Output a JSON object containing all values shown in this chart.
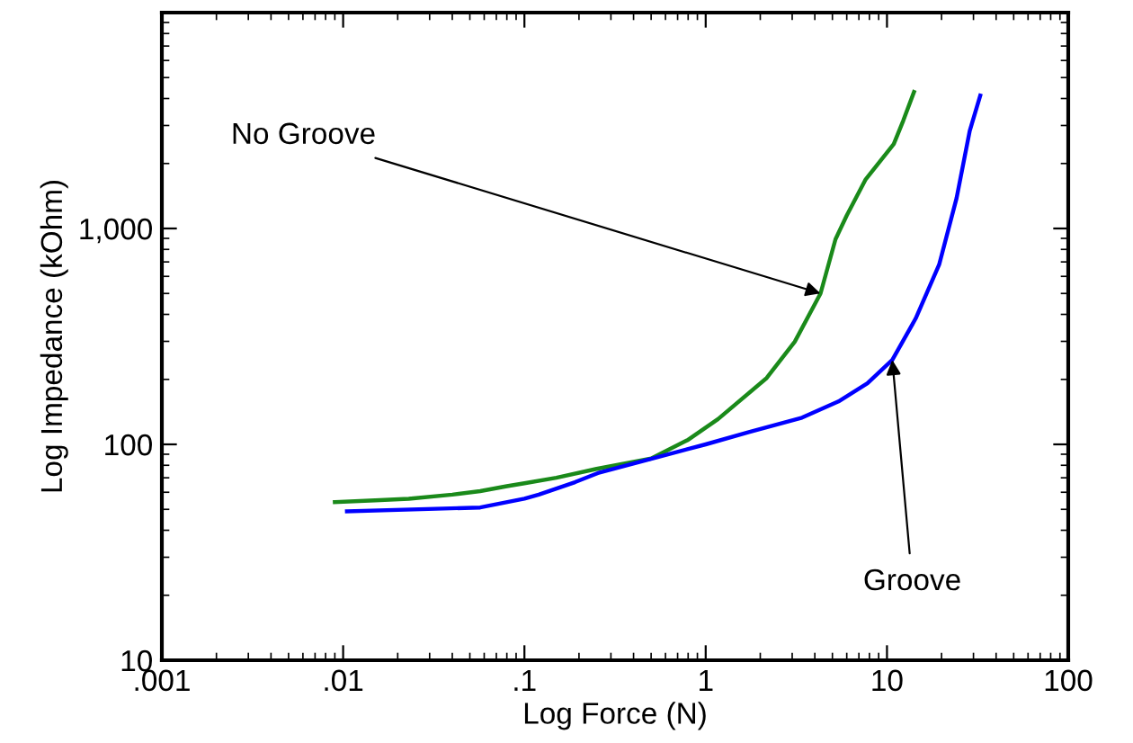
{
  "chart_data": {
    "type": "line",
    "xlabel": "Log Force (N)",
    "ylabel": "Log Impedance (kOhm)",
    "log": "xy",
    "grid": false,
    "legend": false,
    "marker": "none",
    "line_style": "solid",
    "xlim": [
      0.001,
      100
    ],
    "ylim": [
      10,
      10000
    ],
    "xticks": [
      {
        "value": 0.001,
        "label": ".001"
      },
      {
        "value": 0.01,
        "label": ".01"
      },
      {
        "value": 0.1,
        "label": ".1"
      },
      1,
      10,
      100
    ],
    "yticks": [
      10,
      100,
      {
        "value": 1000,
        "label": "1,000"
      },
      {
        "value": 10000,
        "label": null
      }
    ],
    "series": [
      {
        "color": "#1a8a1a",
        "x": [
          0.009,
          0.015,
          0.023,
          0.04,
          0.057,
          0.08,
          0.1,
          0.15,
          0.25,
          0.5,
          0.8,
          1.17,
          2.17,
          3.1,
          4.3,
          5.2,
          6,
          7.6,
          10.9,
          12.3,
          14.1
        ],
        "values": [
          54,
          55,
          56,
          58.5,
          60.7,
          64,
          66,
          70,
          77,
          86,
          105,
          131,
          203,
          299,
          500,
          891,
          1150,
          1680,
          2460,
          3160,
          4290
        ]
      },
      {
        "color": "#0000ff",
        "x": [
          0.0105,
          0.057,
          0.1,
          0.12,
          0.19,
          0.254,
          0.5,
          1,
          1.73,
          3.4,
          5.4,
          7.8,
          10.7,
          14.4,
          19.4,
          24.2,
          28.6,
          32.7
        ],
        "values": [
          49,
          51,
          56,
          58.5,
          66.8,
          73.6,
          85.7,
          100,
          114,
          133,
          158,
          192,
          246,
          383,
          680,
          1380,
          2830,
          4130
        ]
      }
    ],
    "annotations": [
      {
        "text": "No Groove",
        "x": 4.3,
        "y": 500
      },
      {
        "text": "Groove",
        "x": 10.7,
        "y": 246
      }
    ]
  }
}
